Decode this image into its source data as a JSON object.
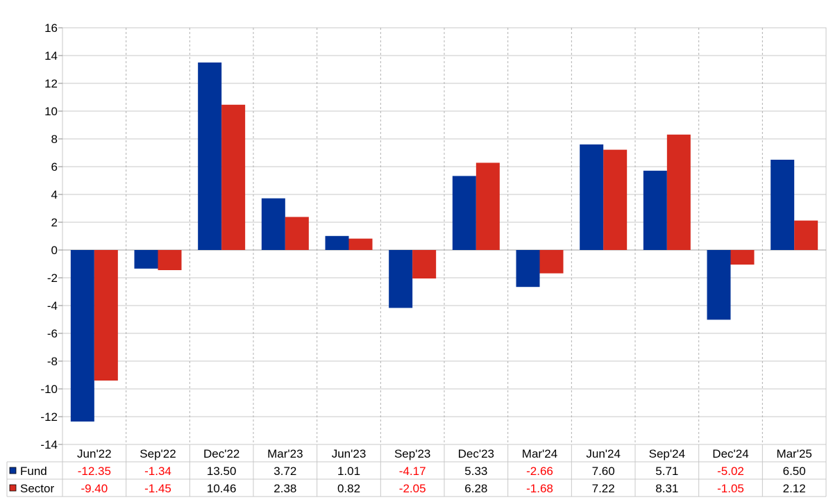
{
  "chart_data": {
    "type": "bar",
    "categories": [
      "Jun'22",
      "Sep'22",
      "Dec'22",
      "Mar'23",
      "Jun'23",
      "Sep'23",
      "Dec'23",
      "Mar'24",
      "Jun'24",
      "Sep'24",
      "Dec'24",
      "Mar'25"
    ],
    "series": [
      {
        "name": "Fund",
        "color": "#003399",
        "values": [
          -12.35,
          -1.34,
          13.5,
          3.72,
          1.01,
          -4.17,
          5.33,
          -2.66,
          7.6,
          5.71,
          -5.02,
          6.5
        ],
        "labels": [
          "-12.35",
          "-1.34",
          "13.50",
          "3.72",
          "1.01",
          "-4.17",
          "5.33",
          "-2.66",
          "7.60",
          "5.71",
          "-5.02",
          "6.50"
        ]
      },
      {
        "name": "Sector",
        "color": "#d62b1f",
        "values": [
          -9.4,
          -1.45,
          10.46,
          2.38,
          0.82,
          -2.05,
          6.28,
          -1.68,
          7.22,
          8.31,
          -1.05,
          2.12
        ],
        "labels": [
          "-9.40",
          "-1.45",
          "10.46",
          "2.38",
          "0.82",
          "-2.05",
          "6.28",
          "-1.68",
          "7.22",
          "8.31",
          "-1.05",
          "2.12"
        ]
      }
    ],
    "ylim": [
      -14,
      16
    ],
    "yticks": [
      "-14",
      "-12",
      "-10",
      "-8",
      "-6",
      "-4",
      "-2",
      "0",
      "2",
      "4",
      "6",
      "8",
      "10",
      "12",
      "14",
      "16"
    ],
    "grid": true,
    "legend": "data-table-left",
    "negative_label_color": "#ff0000"
  }
}
